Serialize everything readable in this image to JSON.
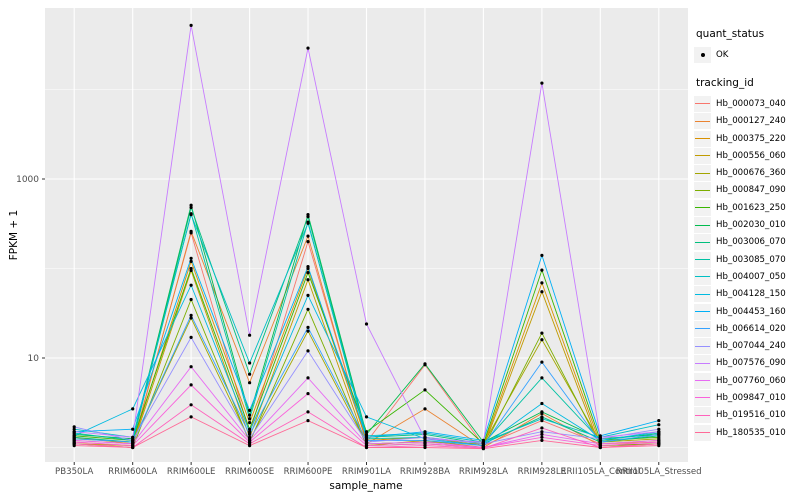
{
  "chart_data": {
    "type": "line",
    "title": "",
    "xlabel": "sample_name",
    "ylabel": "FPKM + 1",
    "y_scale": "log10",
    "ylim": [
      0.69,
      81000
    ],
    "y_major_ticks": [
      10,
      1000
    ],
    "y_minor_gridlines": [
      1,
      100,
      10000
    ],
    "grid": true,
    "legend_position": "right",
    "panel_bg": "#EBEBEB",
    "grid_color": "#FFFFFF",
    "point_color": "#000000",
    "tick_label_color": "#4D4D4D",
    "categories": [
      "PB350LA",
      "RRIM600LA",
      "RRIM600LE",
      "RRIM600SE",
      "RRIM600PE",
      "RRIM901LA",
      "RRIM928BA",
      "RRIM928LA",
      "RRIM928LE",
      "RRII105LA_Control",
      "RRII105LA_Stressed"
    ],
    "series": [
      {
        "name": "Hb_000073_040",
        "color": "#F8766D",
        "values": [
          1.2,
          1.1,
          250,
          1.45,
          200,
          1.15,
          8.4,
          1.05,
          2.0,
          1.1,
          1.15
        ]
      },
      {
        "name": "Hb_000127_240",
        "color": "#EA8331",
        "values": [
          1.15,
          1.05,
          260,
          5.3,
          230,
          1.1,
          2.7,
          1.0,
          2.4,
          1.05,
          1.1
        ]
      },
      {
        "name": "Hb_000375_220",
        "color": "#D89000",
        "values": [
          1.3,
          1.1,
          120,
          1.9,
          100,
          1.2,
          1.3,
          1.05,
          69,
          1.1,
          1.2
        ]
      },
      {
        "name": "Hb_000556_060",
        "color": "#C09B00",
        "values": [
          1.1,
          1.05,
          95,
          1.3,
          75,
          1.05,
          1.2,
          1.0,
          55,
          1.0,
          1.1
        ]
      },
      {
        "name": "Hb_000676_360",
        "color": "#A3A500",
        "values": [
          1.25,
          1.15,
          28,
          1.2,
          20,
          1.1,
          1.15,
          1.1,
          16,
          1.15,
          1.25
        ]
      },
      {
        "name": "Hb_000847_090",
        "color": "#7CAE00",
        "values": [
          1.1,
          1.0,
          45,
          1.15,
          35,
          1.05,
          1.1,
          1.0,
          19,
          1.05,
          1.1
        ]
      },
      {
        "name": "Hb_001623_250",
        "color": "#39B600",
        "values": [
          1.35,
          1.2,
          100,
          1.6,
          90,
          1.5,
          4.4,
          1.1,
          96,
          1.2,
          1.3
        ]
      },
      {
        "name": "Hb_002030_010",
        "color": "#00BB4E",
        "values": [
          1.4,
          1.25,
          510,
          2.3,
          400,
          1.4,
          8.6,
          1.15,
          2.5,
          1.25,
          1.4
        ]
      },
      {
        "name": "Hb_003006_070",
        "color": "#00BF7D",
        "values": [
          1.3,
          1.15,
          480,
          6.6,
          380,
          1.3,
          1.4,
          1.1,
          2.2,
          1.15,
          1.35
        ]
      },
      {
        "name": "Hb_003085_070",
        "color": "#00C1A3",
        "values": [
          1.45,
          1.2,
          410,
          2.1,
          330,
          1.25,
          1.3,
          1.1,
          6.0,
          1.2,
          1.45
        ]
      },
      {
        "name": "Hb_004007_050",
        "color": "#00BFC4",
        "values": [
          1.6,
          1.3,
          400,
          8.8,
          320,
          1.35,
          1.45,
          1.15,
          2.1,
          1.3,
          1.8
        ]
      },
      {
        "name": "Hb_004128_150",
        "color": "#00BAE0",
        "values": [
          1.35,
          2.7,
          65,
          1.5,
          50,
          2.2,
          1.25,
          1.05,
          3.1,
          1.2,
          1.5
        ]
      },
      {
        "name": "Hb_004453_160",
        "color": "#00B0F6",
        "values": [
          1.5,
          1.6,
          130,
          2.6,
          105,
          1.3,
          1.5,
          1.2,
          140,
          1.35,
          2.0
        ]
      },
      {
        "name": "Hb_006614_020",
        "color": "#35A2FF",
        "values": [
          1.25,
          1.15,
          30,
          1.4,
          22,
          1.2,
          1.2,
          1.05,
          9.0,
          1.15,
          1.4
        ]
      },
      {
        "name": "Hb_007044_240",
        "color": "#9590FF",
        "values": [
          1.7,
          1.2,
          17,
          1.25,
          12,
          1.15,
          1.3,
          1.1,
          1.5,
          1.25,
          1.6
        ]
      },
      {
        "name": "Hb_007576_090",
        "color": "#C77CFF",
        "values": [
          1.5,
          1.3,
          52000,
          18,
          29000,
          24,
          1.25,
          1.15,
          11800,
          1.3,
          1.5
        ]
      },
      {
        "name": "Hb_007760_060",
        "color": "#E76BF3",
        "values": [
          1.2,
          1.1,
          8.0,
          1.2,
          6.0,
          1.1,
          1.15,
          1.0,
          1.4,
          1.1,
          1.2
        ]
      },
      {
        "name": "Hb_009847_010",
        "color": "#FA62DB",
        "values": [
          1.15,
          1.05,
          5.0,
          1.15,
          4.0,
          1.05,
          1.1,
          1.0,
          1.3,
          1.05,
          1.15
        ]
      },
      {
        "name": "Hb_019516_010",
        "color": "#FF62BC",
        "values": [
          1.1,
          1.0,
          3.0,
          1.1,
          2.5,
          1.0,
          1.05,
          0.98,
          1.65,
          1.0,
          1.1
        ]
      },
      {
        "name": "Hb_180535_010",
        "color": "#FF6A98",
        "values": [
          1.05,
          1.0,
          2.2,
          1.05,
          2.0,
          1.0,
          1.0,
          0.97,
          1.2,
          1.0,
          1.05
        ]
      }
    ]
  },
  "legend": {
    "quant_status": {
      "title": "quant_status",
      "items": [
        {
          "label": "OK"
        }
      ]
    },
    "tracking_id": {
      "title": "tracking_id"
    }
  }
}
